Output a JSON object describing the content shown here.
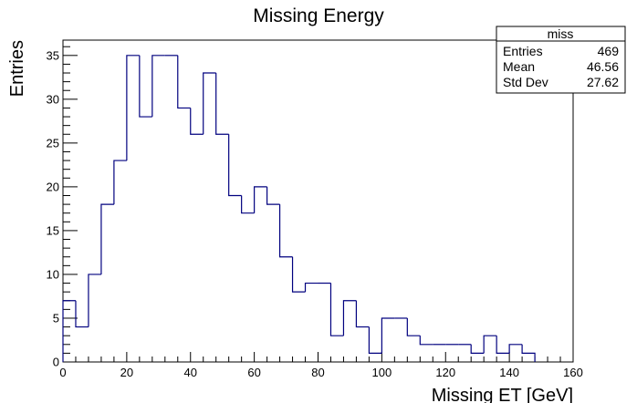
{
  "chart_data": {
    "type": "histogram",
    "title": "Missing Energy",
    "xlabel": "Missing ET [GeV]",
    "ylabel": "Entries",
    "xlim": [
      0,
      160
    ],
    "ylim": [
      0,
      36.75
    ],
    "bin_width": 4,
    "bin_edges_start": 0,
    "values": [
      7,
      4,
      10,
      18,
      23,
      35,
      28,
      35,
      35,
      29,
      26,
      33,
      26,
      19,
      17,
      20,
      18,
      12,
      8,
      9,
      9,
      3,
      7,
      4,
      1,
      5,
      5,
      3,
      2,
      2,
      2,
      2,
      1,
      3,
      1,
      2,
      1
    ],
    "line_color": "#00007f",
    "xticks": [
      0,
      20,
      40,
      60,
      80,
      100,
      120,
      140,
      160
    ],
    "yticks": [
      0,
      5,
      10,
      15,
      20,
      25,
      30,
      35
    ],
    "stats": {
      "name": "miss",
      "rows": [
        {
          "label": "Entries",
          "value": "469"
        },
        {
          "label": "Mean",
          "value": "46.56"
        },
        {
          "label": "Std Dev",
          "value": "27.62"
        }
      ]
    }
  }
}
